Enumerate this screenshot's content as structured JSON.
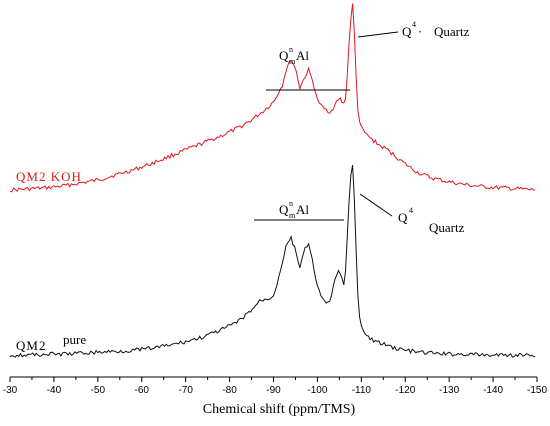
{
  "chart_data": {
    "type": "line",
    "xlabel": "Chemical shift (ppm/TMS)",
    "xlim": [
      -30,
      -150
    ],
    "x_ticks": [
      "-30",
      "-40",
      "-50",
      "-60",
      "-70",
      "-80",
      "-90",
      "-100",
      "-110",
      "-120",
      "-130",
      "-140",
      "-150"
    ],
    "series": [
      {
        "name": "QM2 KOH",
        "color": "#e0191e",
        "points": [
          [
            -30,
            -50
          ],
          [
            -34,
            -49
          ],
          [
            -38,
            -48
          ],
          [
            -42,
            -46
          ],
          [
            -46,
            -43
          ],
          [
            -50,
            -40
          ],
          [
            -54,
            -35
          ],
          [
            -58,
            -30
          ],
          [
            -62,
            -24
          ],
          [
            -66,
            -17
          ],
          [
            -70,
            -10
          ],
          [
            -74,
            -3
          ],
          [
            -78,
            4
          ],
          [
            -82,
            12
          ],
          [
            -85,
            20
          ],
          [
            -88,
            30
          ],
          [
            -90,
            38
          ],
          [
            -92,
            55
          ],
          [
            -93,
            72
          ],
          [
            -94,
            80
          ],
          [
            -95,
            72
          ],
          [
            -96,
            52
          ],
          [
            -97,
            62
          ],
          [
            -98,
            70
          ],
          [
            -99,
            58
          ],
          [
            -100,
            40
          ],
          [
            -101,
            33
          ],
          [
            -102,
            30
          ],
          [
            -103,
            28
          ],
          [
            -104,
            35
          ],
          [
            -105,
            42
          ],
          [
            -106,
            36
          ],
          [
            -106.5,
            44
          ],
          [
            -107,
            80
          ],
          [
            -107.5,
            118
          ],
          [
            -108,
            135
          ],
          [
            -108.5,
            100
          ],
          [
            -109,
            40
          ],
          [
            -109.5,
            20
          ],
          [
            -110,
            12
          ],
          [
            -111,
            6
          ],
          [
            -112,
            2
          ],
          [
            -114,
            -5
          ],
          [
            -116,
            -10
          ],
          [
            -118,
            -17
          ],
          [
            -120,
            -24
          ],
          [
            -123,
            -33
          ],
          [
            -126,
            -38
          ],
          [
            -130,
            -42
          ],
          [
            -134,
            -45
          ],
          [
            -138,
            -47
          ],
          [
            -142,
            -48
          ],
          [
            -146,
            -49
          ],
          [
            -150,
            -50
          ]
        ]
      },
      {
        "name": "QM2 pure",
        "color": "#111111",
        "points": [
          [
            -30,
            3
          ],
          [
            -34,
            3
          ],
          [
            -38,
            4
          ],
          [
            -42,
            4
          ],
          [
            -46,
            5
          ],
          [
            -50,
            6
          ],
          [
            -54,
            7
          ],
          [
            -58,
            8
          ],
          [
            -62,
            10
          ],
          [
            -66,
            13
          ],
          [
            -70,
            17
          ],
          [
            -74,
            22
          ],
          [
            -78,
            29
          ],
          [
            -82,
            38
          ],
          [
            -85,
            50
          ],
          [
            -87,
            60
          ],
          [
            -89,
            62
          ],
          [
            -90,
            66
          ],
          [
            -91,
            80
          ],
          [
            -92,
            100
          ],
          [
            -93,
            118
          ],
          [
            -94,
            125
          ],
          [
            -95,
            112
          ],
          [
            -96,
            95
          ],
          [
            -97,
            112
          ],
          [
            -98,
            118
          ],
          [
            -99,
            98
          ],
          [
            -100,
            75
          ],
          [
            -101,
            62
          ],
          [
            -102,
            56
          ],
          [
            -103,
            62
          ],
          [
            -104,
            80
          ],
          [
            -105,
            92
          ],
          [
            -106,
            75
          ],
          [
            -106.5,
            95
          ],
          [
            -107,
            145
          ],
          [
            -107.5,
            190
          ],
          [
            -108,
            200
          ],
          [
            -108.5,
            160
          ],
          [
            -109,
            80
          ],
          [
            -109.5,
            45
          ],
          [
            -110,
            32
          ],
          [
            -111,
            24
          ],
          [
            -112,
            20
          ],
          [
            -114,
            16
          ],
          [
            -116,
            13
          ],
          [
            -118,
            10
          ],
          [
            -120,
            8
          ],
          [
            -123,
            6
          ],
          [
            -126,
            5
          ],
          [
            -130,
            4
          ],
          [
            -134,
            4
          ],
          [
            -138,
            3
          ],
          [
            -142,
            3
          ],
          [
            -146,
            3
          ],
          [
            -150,
            3
          ]
        ]
      }
    ]
  },
  "labels": {
    "koh_series": "QM2 KOH",
    "pure_series_a": "QM2",
    "pure_series_b": "pure",
    "q_letter": "Q",
    "q_sup_n": "n",
    "q_sub_m": "m",
    "q_al": "Al",
    "q4_sup": "4",
    "q4_dot": "·",
    "quartz": "Quartz"
  }
}
